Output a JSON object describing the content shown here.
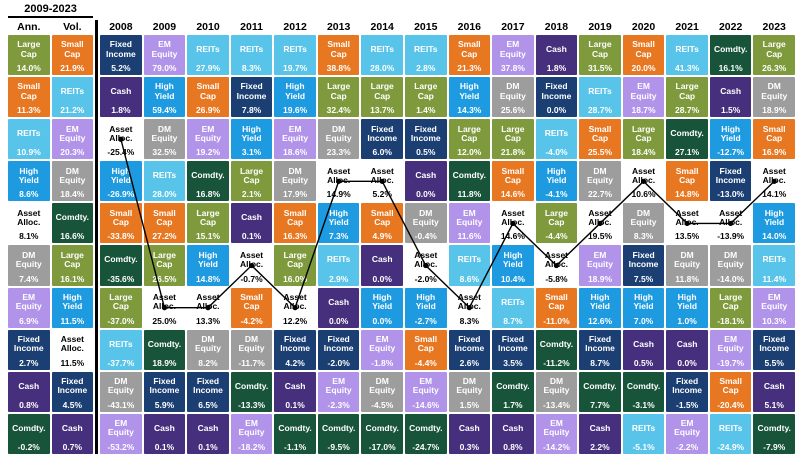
{
  "asset_colors": {
    "Large Cap": {
      "bg": "#7f9a3d",
      "fg": "#ffffff"
    },
    "Small Cap": {
      "bg": "#e87722",
      "fg": "#ffffff"
    },
    "REITs": {
      "bg": "#58c4e9",
      "fg": "#ffffff"
    },
    "EM Equity": {
      "bg": "#b193ea",
      "fg": "#ffffff"
    },
    "DM Equity": {
      "bg": "#9d9d9d",
      "fg": "#ffffff"
    },
    "High Yield": {
      "bg": "#1e9be0",
      "fg": "#ffffff"
    },
    "Fixed Income": {
      "bg": "#1b3f73",
      "fg": "#ffffff"
    },
    "Cash": {
      "bg": "#462f7d",
      "fg": "#ffffff"
    },
    "Comdty.": {
      "bg": "#18543a",
      "fg": "#ffffff"
    },
    "Asset Alloc.": {
      "bg": "#ffffff",
      "fg": "#000000"
    }
  },
  "overlay_line": {
    "asset": "Asset Alloc.",
    "color": "#000000",
    "dot_radius": 2.6,
    "stroke_width": 1.4
  },
  "chart_data": {
    "type": "table",
    "period_label": "2009-2023",
    "columns": [
      {
        "label": "Ann.",
        "type": "summary",
        "cells": [
          {
            "asset": "Large Cap",
            "value": "14.0%"
          },
          {
            "asset": "Small Cap",
            "value": "11.3%"
          },
          {
            "asset": "REITs",
            "value": "10.9%"
          },
          {
            "asset": "High Yield",
            "value": "8.6%"
          },
          {
            "asset": "Asset Alloc.",
            "value": "8.1%"
          },
          {
            "asset": "DM Equity",
            "value": "7.4%"
          },
          {
            "asset": "EM Equity",
            "value": "6.9%"
          },
          {
            "asset": "Fixed Income",
            "value": "2.7%"
          },
          {
            "asset": "Cash",
            "value": "0.8%"
          },
          {
            "asset": "Comdty.",
            "value": "-0.2%"
          }
        ]
      },
      {
        "label": "Vol.",
        "type": "summary",
        "cells": [
          {
            "asset": "Small Cap",
            "value": "21.9%"
          },
          {
            "asset": "REITs",
            "value": "21.2%"
          },
          {
            "asset": "EM Equity",
            "value": "20.3%"
          },
          {
            "asset": "DM Equity",
            "value": "18.4%"
          },
          {
            "asset": "Comdty.",
            "value": "16.6%"
          },
          {
            "asset": "Large Cap",
            "value": "16.1%"
          },
          {
            "asset": "High Yield",
            "value": "11.5%"
          },
          {
            "asset": "Asset Alloc.",
            "value": "11.5%"
          },
          {
            "asset": "Fixed Income",
            "value": "4.5%"
          },
          {
            "asset": "Cash",
            "value": "0.7%"
          }
        ]
      },
      {
        "label": "2008",
        "type": "year",
        "cells": [
          {
            "asset": "Fixed Income",
            "value": "5.2%"
          },
          {
            "asset": "Cash",
            "value": "1.8%"
          },
          {
            "asset": "Asset Alloc.",
            "value": "-25.4%"
          },
          {
            "asset": "High Yield",
            "value": "-26.9%"
          },
          {
            "asset": "Small Cap",
            "value": "-33.8%"
          },
          {
            "asset": "Comdty.",
            "value": "-35.6%"
          },
          {
            "asset": "Large Cap",
            "value": "-37.0%"
          },
          {
            "asset": "REITs",
            "value": "-37.7%"
          },
          {
            "asset": "DM Equity",
            "value": "-43.1%"
          },
          {
            "asset": "EM Equity",
            "value": "-53.2%"
          }
        ]
      },
      {
        "label": "2009",
        "type": "year",
        "cells": [
          {
            "asset": "EM Equity",
            "value": "79.0%"
          },
          {
            "asset": "High Yield",
            "value": "59.4%"
          },
          {
            "asset": "DM Equity",
            "value": "32.5%"
          },
          {
            "asset": "REITs",
            "value": "28.0%"
          },
          {
            "asset": "Small Cap",
            "value": "27.2%"
          },
          {
            "asset": "Large Cap",
            "value": "26.5%"
          },
          {
            "asset": "Asset Alloc.",
            "value": "25.0%"
          },
          {
            "asset": "Comdty.",
            "value": "18.9%"
          },
          {
            "asset": "Fixed Income",
            "value": "5.9%"
          },
          {
            "asset": "Cash",
            "value": "0.1%"
          }
        ]
      },
      {
        "label": "2010",
        "type": "year",
        "cells": [
          {
            "asset": "REITs",
            "value": "27.9%"
          },
          {
            "asset": "Small Cap",
            "value": "26.9%"
          },
          {
            "asset": "EM Equity",
            "value": "19.2%"
          },
          {
            "asset": "Comdty.",
            "value": "16.8%"
          },
          {
            "asset": "Large Cap",
            "value": "15.1%"
          },
          {
            "asset": "High Yield",
            "value": "14.8%"
          },
          {
            "asset": "Asset Alloc.",
            "value": "13.3%"
          },
          {
            "asset": "DM Equity",
            "value": "8.2%"
          },
          {
            "asset": "Fixed Income",
            "value": "6.5%"
          },
          {
            "asset": "Cash",
            "value": "0.1%"
          }
        ]
      },
      {
        "label": "2011",
        "type": "year",
        "cells": [
          {
            "asset": "REITs",
            "value": "8.3%"
          },
          {
            "asset": "Fixed Income",
            "value": "7.8%"
          },
          {
            "asset": "High Yield",
            "value": "3.1%"
          },
          {
            "asset": "Large Cap",
            "value": "2.1%"
          },
          {
            "asset": "Cash",
            "value": "0.1%"
          },
          {
            "asset": "Asset Alloc.",
            "value": "-0.7%"
          },
          {
            "asset": "Small Cap",
            "value": "-4.2%"
          },
          {
            "asset": "DM Equity",
            "value": "-11.7%"
          },
          {
            "asset": "Comdty.",
            "value": "-13.3%"
          },
          {
            "asset": "EM Equity",
            "value": "-18.2%"
          }
        ]
      },
      {
        "label": "2012",
        "type": "year",
        "cells": [
          {
            "asset": "REITs",
            "value": "19.7%"
          },
          {
            "asset": "High Yield",
            "value": "19.6%"
          },
          {
            "asset": "EM Equity",
            "value": "18.6%"
          },
          {
            "asset": "DM Equity",
            "value": "17.9%"
          },
          {
            "asset": "Small Cap",
            "value": "16.3%"
          },
          {
            "asset": "Large Cap",
            "value": "16.0%"
          },
          {
            "asset": "Asset Alloc.",
            "value": "12.2%"
          },
          {
            "asset": "Fixed Income",
            "value": "4.2%"
          },
          {
            "asset": "Cash",
            "value": "0.1%"
          },
          {
            "asset": "Comdty.",
            "value": "-1.1%"
          }
        ]
      },
      {
        "label": "2013",
        "type": "year",
        "cells": [
          {
            "asset": "Small Cap",
            "value": "38.8%"
          },
          {
            "asset": "Large Cap",
            "value": "32.4%"
          },
          {
            "asset": "DM Equity",
            "value": "23.3%"
          },
          {
            "asset": "Asset Alloc.",
            "value": "14.9%"
          },
          {
            "asset": "High Yield",
            "value": "7.3%"
          },
          {
            "asset": "REITs",
            "value": "2.9%"
          },
          {
            "asset": "Cash",
            "value": "0.0%"
          },
          {
            "asset": "Fixed Income",
            "value": "-2.0%"
          },
          {
            "asset": "EM Equity",
            "value": "-2.3%"
          },
          {
            "asset": "Comdty.",
            "value": "-9.5%"
          }
        ]
      },
      {
        "label": "2014",
        "type": "year",
        "cells": [
          {
            "asset": "REITs",
            "value": "28.0%"
          },
          {
            "asset": "Large Cap",
            "value": "13.7%"
          },
          {
            "asset": "Fixed Income",
            "value": "6.0%"
          },
          {
            "asset": "Asset Alloc.",
            "value": "5.2%"
          },
          {
            "asset": "Small Cap",
            "value": "4.9%"
          },
          {
            "asset": "Cash",
            "value": "0.0%"
          },
          {
            "asset": "High Yield",
            "value": "0.0%"
          },
          {
            "asset": "EM Equity",
            "value": "-1.8%"
          },
          {
            "asset": "DM Equity",
            "value": "-4.5%"
          },
          {
            "asset": "Comdty.",
            "value": "-17.0%"
          }
        ]
      },
      {
        "label": "2015",
        "type": "year",
        "cells": [
          {
            "asset": "REITs",
            "value": "2.8%"
          },
          {
            "asset": "Large Cap",
            "value": "1.4%"
          },
          {
            "asset": "Fixed Income",
            "value": "0.5%"
          },
          {
            "asset": "Cash",
            "value": "0.0%"
          },
          {
            "asset": "DM Equity",
            "value": "-0.4%"
          },
          {
            "asset": "Asset Alloc.",
            "value": "-2.0%"
          },
          {
            "asset": "High Yield",
            "value": "-2.7%"
          },
          {
            "asset": "Small Cap",
            "value": "-4.4%"
          },
          {
            "asset": "EM Equity",
            "value": "-14.6%"
          },
          {
            "asset": "Comdty.",
            "value": "-24.7%"
          }
        ]
      },
      {
        "label": "2016",
        "type": "year",
        "cells": [
          {
            "asset": "Small Cap",
            "value": "21.3%"
          },
          {
            "asset": "High Yield",
            "value": "14.3%"
          },
          {
            "asset": "Large Cap",
            "value": "12.0%"
          },
          {
            "asset": "Comdty.",
            "value": "11.8%"
          },
          {
            "asset": "EM Equity",
            "value": "11.6%"
          },
          {
            "asset": "REITs",
            "value": "8.6%"
          },
          {
            "asset": "Asset Alloc.",
            "value": "8.3%"
          },
          {
            "asset": "Fixed Income",
            "value": "2.6%"
          },
          {
            "asset": "DM Equity",
            "value": "1.5%"
          },
          {
            "asset": "Cash",
            "value": "0.3%"
          }
        ]
      },
      {
        "label": "2017",
        "type": "year",
        "cells": [
          {
            "asset": "EM Equity",
            "value": "37.8%"
          },
          {
            "asset": "DM Equity",
            "value": "25.6%"
          },
          {
            "asset": "Large Cap",
            "value": "21.8%"
          },
          {
            "asset": "Small Cap",
            "value": "14.6%"
          },
          {
            "asset": "Asset Alloc.",
            "value": "14.6%"
          },
          {
            "asset": "High Yield",
            "value": "10.4%"
          },
          {
            "asset": "REITs",
            "value": "8.7%"
          },
          {
            "asset": "Fixed Income",
            "value": "3.5%"
          },
          {
            "asset": "Comdty.",
            "value": "1.7%"
          },
          {
            "asset": "Cash",
            "value": "0.8%"
          }
        ]
      },
      {
        "label": "2018",
        "type": "year",
        "cells": [
          {
            "asset": "Cash",
            "value": "1.8%"
          },
          {
            "asset": "Fixed Income",
            "value": "0.0%"
          },
          {
            "asset": "REITs",
            "value": "-4.0%"
          },
          {
            "asset": "High Yield",
            "value": "-4.1%"
          },
          {
            "asset": "Large Cap",
            "value": "-4.4%"
          },
          {
            "asset": "Asset Alloc.",
            "value": "-5.8%"
          },
          {
            "asset": "Small Cap",
            "value": "-11.0%"
          },
          {
            "asset": "Comdty.",
            "value": "-11.2%"
          },
          {
            "asset": "DM Equity",
            "value": "-13.4%"
          },
          {
            "asset": "EM Equity",
            "value": "-14.2%"
          }
        ]
      },
      {
        "label": "2019",
        "type": "year",
        "cells": [
          {
            "asset": "Large Cap",
            "value": "31.5%"
          },
          {
            "asset": "REITs",
            "value": "28.7%"
          },
          {
            "asset": "Small Cap",
            "value": "25.5%"
          },
          {
            "asset": "DM Equity",
            "value": "22.7%"
          },
          {
            "asset": "Asset Alloc.",
            "value": "19.5%"
          },
          {
            "asset": "EM Equity",
            "value": "18.9%"
          },
          {
            "asset": "High Yield",
            "value": "12.6%"
          },
          {
            "asset": "Fixed Income",
            "value": "8.7%"
          },
          {
            "asset": "Comdty.",
            "value": "7.7%"
          },
          {
            "asset": "Cash",
            "value": "2.2%"
          }
        ]
      },
      {
        "label": "2020",
        "type": "year",
        "cells": [
          {
            "asset": "Small Cap",
            "value": "20.0%"
          },
          {
            "asset": "EM Equity",
            "value": "18.7%"
          },
          {
            "asset": "Large Cap",
            "value": "18.4%"
          },
          {
            "asset": "Asset Alloc.",
            "value": "10.6%"
          },
          {
            "asset": "DM Equity",
            "value": "8.3%"
          },
          {
            "asset": "Fixed Income",
            "value": "7.5%"
          },
          {
            "asset": "High Yield",
            "value": "7.0%"
          },
          {
            "asset": "Cash",
            "value": "0.5%"
          },
          {
            "asset": "Comdty.",
            "value": "-3.1%"
          },
          {
            "asset": "REITs",
            "value": "-5.1%"
          }
        ]
      },
      {
        "label": "2021",
        "type": "year",
        "cells": [
          {
            "asset": "REITs",
            "value": "41.3%"
          },
          {
            "asset": "Large Cap",
            "value": "28.7%"
          },
          {
            "asset": "Comdty.",
            "value": "27.1%"
          },
          {
            "asset": "Small Cap",
            "value": "14.8%"
          },
          {
            "asset": "Asset Alloc.",
            "value": "13.5%"
          },
          {
            "asset": "DM Equity",
            "value": "11.8%"
          },
          {
            "asset": "High Yield",
            "value": "1.0%"
          },
          {
            "asset": "Cash",
            "value": "0.0%"
          },
          {
            "asset": "Fixed Income",
            "value": "-1.5%"
          },
          {
            "asset": "EM Equity",
            "value": "-2.2%"
          }
        ]
      },
      {
        "label": "2022",
        "type": "year",
        "cells": [
          {
            "asset": "Comdty.",
            "value": "16.1%"
          },
          {
            "asset": "Cash",
            "value": "1.5%"
          },
          {
            "asset": "High Yield",
            "value": "-12.7%"
          },
          {
            "asset": "Fixed Income",
            "value": "-13.0%"
          },
          {
            "asset": "Asset Alloc.",
            "value": "-13.9%"
          },
          {
            "asset": "DM Equity",
            "value": "-14.0%"
          },
          {
            "asset": "Large Cap",
            "value": "-18.1%"
          },
          {
            "asset": "EM Equity",
            "value": "-19.7%"
          },
          {
            "asset": "Small Cap",
            "value": "-20.4%"
          },
          {
            "asset": "REITs",
            "value": "-24.9%"
          }
        ]
      },
      {
        "label": "2023",
        "type": "year",
        "cells": [
          {
            "asset": "Large Cap",
            "value": "26.3%"
          },
          {
            "asset": "DM Equity",
            "value": "18.9%"
          },
          {
            "asset": "Small Cap",
            "value": "16.9%"
          },
          {
            "asset": "Asset Alloc.",
            "value": "14.1%"
          },
          {
            "asset": "High Yield",
            "value": "14.0%"
          },
          {
            "asset": "REITs",
            "value": "11.4%"
          },
          {
            "asset": "EM Equity",
            "value": "10.3%"
          },
          {
            "asset": "Fixed Income",
            "value": "5.5%"
          },
          {
            "asset": "Cash",
            "value": "5.1%"
          },
          {
            "asset": "Comdty.",
            "value": "-7.9%"
          }
        ]
      }
    ]
  }
}
